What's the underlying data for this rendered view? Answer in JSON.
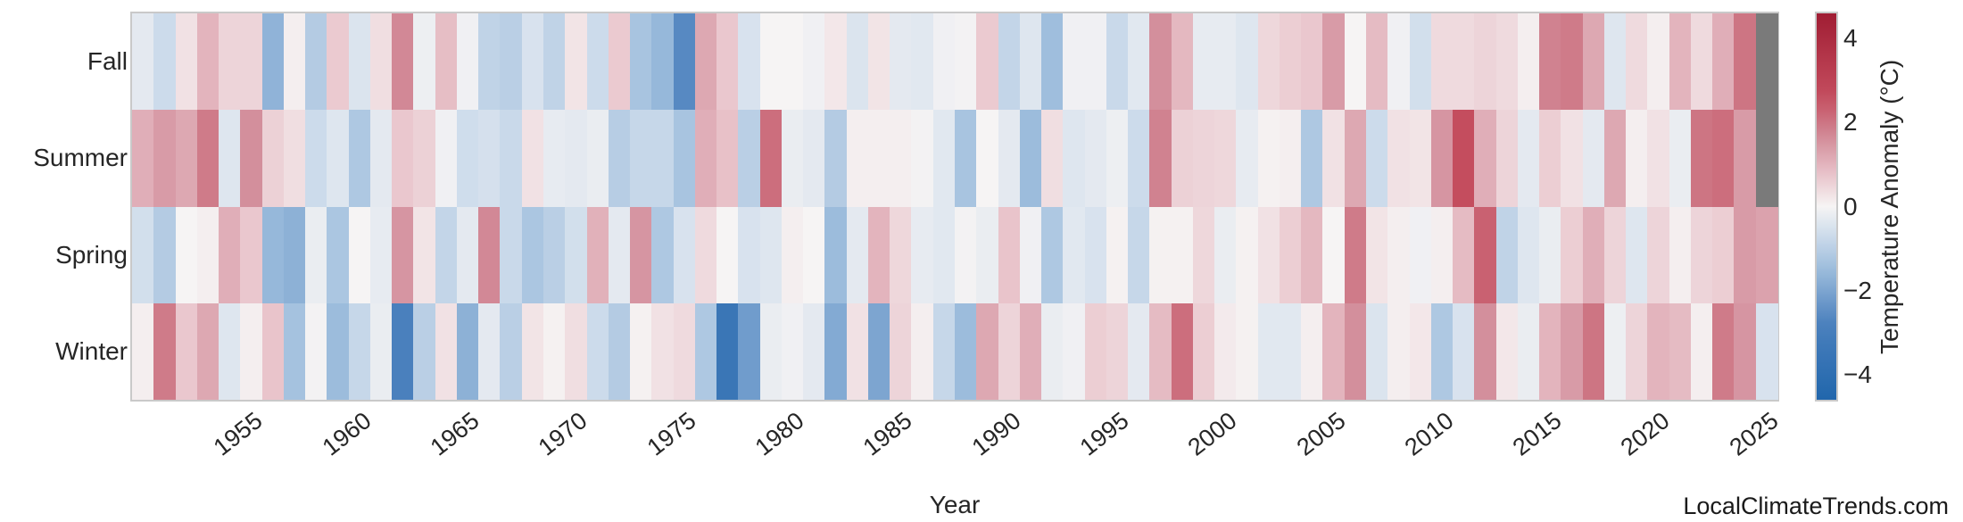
{
  "watermark": "LocalClimateTrends.com",
  "chart_data": {
    "type": "heatmap",
    "xlabel": "Year",
    "colorbar_label": "Temperature Anomaly (°C)",
    "colorbar_tick_values": [
      4,
      2,
      0,
      -2,
      -4
    ],
    "colorbar_tick_labels": [
      "4",
      "2",
      "0",
      "−2",
      "−4"
    ],
    "value_range": [
      -4.6,
      4.6
    ],
    "grid": false,
    "legend_position": "right-colorbar",
    "rows": [
      "Fall",
      "Summer",
      "Spring",
      "Winter"
    ],
    "x_start_year": 1950,
    "x_end_year": 2025,
    "x_tick_labels": [
      "1955",
      "1960",
      "1965",
      "1970",
      "1975",
      "1980",
      "1985",
      "1990",
      "1995",
      "2000",
      "2005",
      "2010",
      "2015",
      "2020",
      "2025"
    ],
    "missing_color": "#7a7a7a",
    "colormap_anchors": [
      [
        -4.6,
        "#2166ac"
      ],
      [
        -2.8,
        "#4a80bd"
      ],
      [
        -1.6,
        "#96b8da"
      ],
      [
        -0.7,
        "#ccdbeb"
      ],
      [
        0.0,
        "#f6f4f4"
      ],
      [
        0.75,
        "#e9c4cb"
      ],
      [
        1.6,
        "#d38f9c"
      ],
      [
        2.6,
        "#c44d5e"
      ],
      [
        4.6,
        "#a01d33"
      ]
    ],
    "series": [
      {
        "name": "Fall",
        "values": [
          -0.3,
          -0.7,
          0.3,
          1.0,
          0.5,
          0.5,
          -1.7,
          0.1,
          -1.1,
          0.65,
          -0.45,
          0.35,
          1.7,
          -0.15,
          0.85,
          -0.1,
          -0.9,
          -1.0,
          -0.5,
          -0.9,
          0.25,
          -0.7,
          0.65,
          -1.3,
          -1.6,
          -2.6,
          1.2,
          0.7,
          -0.5,
          0.0,
          0.0,
          -0.1,
          0.2,
          -0.45,
          0.25,
          -0.3,
          -0.35,
          -0.1,
          -0.05,
          0.65,
          -0.85,
          -0.4,
          -1.45,
          -0.1,
          -0.1,
          -0.75,
          -0.35,
          1.6,
          0.95,
          -0.25,
          -0.25,
          -0.4,
          0.45,
          0.6,
          0.7,
          1.4,
          0.0,
          0.9,
          -0.1,
          -0.6,
          0.4,
          0.4,
          0.5,
          0.4,
          0.1,
          1.8,
          1.9,
          1.2,
          -0.4,
          0.4,
          0.1,
          1.0,
          0.4,
          1.1,
          2.0,
          null
        ]
      },
      {
        "name": "Summer",
        "values": [
          1.1,
          1.4,
          1.2,
          1.9,
          -0.4,
          1.6,
          0.55,
          0.35,
          -0.7,
          -0.4,
          -1.2,
          -0.3,
          0.7,
          0.55,
          -0.1,
          -0.65,
          -0.55,
          -0.75,
          0.3,
          -0.25,
          -0.3,
          -0.2,
          -1.05,
          -0.8,
          -0.8,
          -1.3,
          1.1,
          0.8,
          -1.0,
          2.1,
          -0.2,
          -0.3,
          -1.1,
          0.1,
          0.1,
          0.1,
          -0.05,
          -0.35,
          -1.3,
          0.0,
          -0.3,
          -1.5,
          0.35,
          -0.4,
          -0.3,
          -0.15,
          -0.7,
          1.8,
          0.55,
          0.5,
          0.45,
          -0.25,
          0.05,
          0.1,
          -1.2,
          0.3,
          1.2,
          -0.7,
          0.3,
          0.25,
          1.5,
          2.6,
          1.1,
          0.5,
          -0.3,
          0.6,
          0.3,
          -0.3,
          1.2,
          0.1,
          0.3,
          -0.2,
          2.0,
          2.1,
          1.4,
          null
        ]
      },
      {
        "name": "Spring",
        "values": [
          -0.6,
          -1.1,
          0.0,
          0.1,
          1.1,
          0.7,
          -1.6,
          -1.75,
          -0.2,
          -1.25,
          0.0,
          -0.25,
          1.5,
          0.25,
          -0.85,
          -0.3,
          1.7,
          -0.75,
          -1.25,
          -1.0,
          -0.6,
          1.05,
          -0.3,
          1.5,
          -1.2,
          -0.5,
          0.4,
          0.0,
          -0.5,
          -0.4,
          0.1,
          0.0,
          -1.5,
          -0.3,
          1.0,
          0.45,
          -0.25,
          -0.35,
          -0.05,
          -0.2,
          0.75,
          -0.1,
          -1.2,
          -0.35,
          -0.5,
          0.05,
          -0.8,
          0.05,
          0.05,
          0.45,
          -0.2,
          0.05,
          0.3,
          0.6,
          0.95,
          0.0,
          1.9,
          0.25,
          0.1,
          -0.1,
          0.1,
          0.9,
          2.3,
          -0.9,
          -0.4,
          -0.2,
          0.6,
          1.1,
          0.5,
          -0.4,
          0.5,
          0.1,
          0.5,
          0.6,
          1.4,
          1.3
        ]
      },
      {
        "name": "Winter",
        "values": [
          0.1,
          1.9,
          0.7,
          1.2,
          -0.4,
          0.1,
          0.75,
          -1.35,
          -0.05,
          -1.5,
          -0.8,
          -0.2,
          -2.8,
          -1.0,
          0.3,
          -1.75,
          -0.3,
          -1.0,
          0.25,
          0.05,
          0.35,
          -0.7,
          -1.1,
          0.05,
          0.3,
          0.4,
          -1.2,
          -3.5,
          -2.2,
          -0.2,
          -0.1,
          -0.3,
          -1.9,
          0.3,
          -2.0,
          0.5,
          0.1,
          -0.8,
          -1.5,
          1.2,
          0.5,
          1.1,
          -0.2,
          -0.1,
          0.6,
          0.5,
          -0.3,
          0.9,
          2.1,
          0.6,
          0.15,
          0.05,
          -0.35,
          -0.35,
          0.1,
          1.0,
          1.6,
          -0.45,
          0.1,
          0.2,
          -1.2,
          -0.5,
          1.6,
          0.2,
          -0.2,
          1.0,
          1.4,
          2.0,
          -0.15,
          0.5,
          1.0,
          0.9,
          0.1,
          1.9,
          1.5,
          -0.5
        ]
      }
    ]
  }
}
